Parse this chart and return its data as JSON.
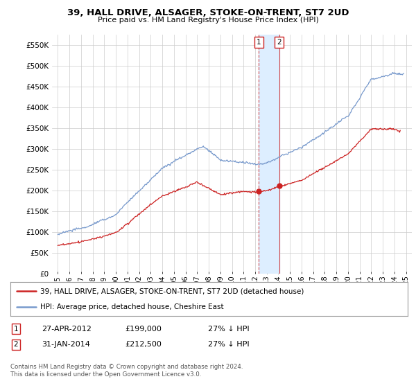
{
  "title": "39, HALL DRIVE, ALSAGER, STOKE-ON-TRENT, ST7 2UD",
  "subtitle": "Price paid vs. HM Land Registry's House Price Index (HPI)",
  "ylabel_ticks": [
    "£0",
    "£50K",
    "£100K",
    "£150K",
    "£200K",
    "£250K",
    "£300K",
    "£350K",
    "£400K",
    "£450K",
    "£500K",
    "£550K"
  ],
  "ytick_values": [
    0,
    50000,
    100000,
    150000,
    200000,
    250000,
    300000,
    350000,
    400000,
    450000,
    500000,
    550000
  ],
  "ylim": [
    0,
    575000
  ],
  "xlim_start": 1994.5,
  "xlim_end": 2025.5,
  "hpi_color": "#7799cc",
  "price_color": "#cc2222",
  "marker1_date": 2012.32,
  "marker2_date": 2014.08,
  "marker1_price": 199000,
  "marker2_price": 212500,
  "legend_line1": "39, HALL DRIVE, ALSAGER, STOKE-ON-TRENT, ST7 2UD (detached house)",
  "legend_line2": "HPI: Average price, detached house, Cheshire East",
  "table_row1": [
    "1",
    "27-APR-2012",
    "£199,000",
    "27% ↓ HPI"
  ],
  "table_row2": [
    "2",
    "31-JAN-2014",
    "£212,500",
    "27% ↓ HPI"
  ],
  "footnote": "Contains HM Land Registry data © Crown copyright and database right 2024.\nThis data is licensed under the Open Government Licence v3.0.",
  "bg_color": "#ffffff",
  "grid_color": "#cccccc",
  "plot_bg": "#ffffff",
  "shade_color": "#ddeeff"
}
